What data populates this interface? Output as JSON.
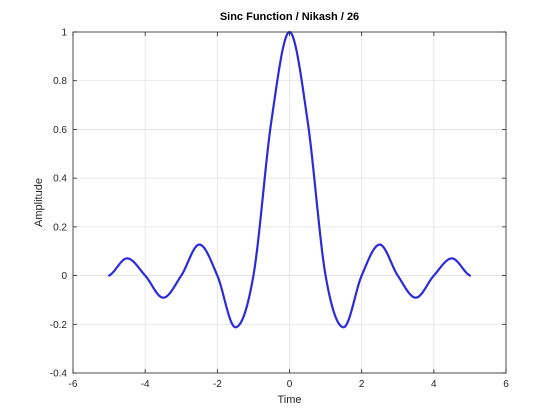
{
  "chart_data": {
    "type": "line",
    "title": "Sinc Function / Nikash / 26",
    "xlabel": "Time",
    "ylabel": "Amplitude",
    "xlim": [
      -6,
      6
    ],
    "ylim": [
      -0.4,
      1
    ],
    "xticks": [
      -6,
      -4,
      -2,
      0,
      2,
      4,
      6
    ],
    "xtick_labels": [
      "-6",
      "-4",
      "-2",
      "0",
      "2",
      "4",
      "6"
    ],
    "yticks": [
      -0.4,
      -0.2,
      0,
      0.2,
      0.4,
      0.6,
      0.8,
      1
    ],
    "ytick_labels": [
      "-0.4",
      "-0.2",
      "0",
      "0.2",
      "0.4",
      "0.6",
      "0.8",
      "1"
    ],
    "grid": true,
    "line_color": "#2b2bdc",
    "series": [
      {
        "x": [
          -5,
          -4.5,
          -4,
          -3.5,
          -3,
          -2.5,
          -2,
          -1.5,
          -1,
          -0.5,
          0,
          0.5,
          1,
          1.5,
          2,
          2.5,
          3,
          3.5,
          4,
          4.5,
          5
        ],
        "y": [
          0,
          0.0707,
          0,
          -0.0909,
          0,
          0.1273,
          0,
          -0.2122,
          0,
          0.6366,
          1,
          0.6366,
          0,
          -0.2122,
          0,
          0.1273,
          0,
          -0.0909,
          0,
          0.0707,
          0
        ]
      }
    ]
  }
}
